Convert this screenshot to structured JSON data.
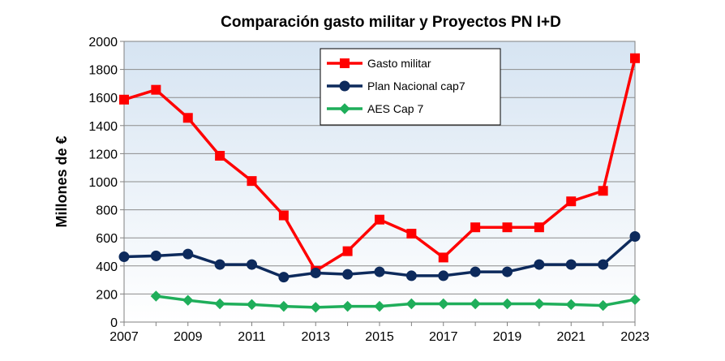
{
  "chart_data": {
    "type": "line",
    "title": "Comparación  gasto militar y Proyectos PN I+D",
    "xlabel": "",
    "ylabel": "Millones de €",
    "x": [
      2007,
      2008,
      2009,
      2010,
      2011,
      2012,
      2013,
      2014,
      2015,
      2016,
      2017,
      2018,
      2019,
      2020,
      2021,
      2022,
      2023
    ],
    "xlim": [
      2007,
      2023
    ],
    "xticks": [
      "2007",
      "2009",
      "2011",
      "2013",
      "2015",
      "2017",
      "2019",
      "2021",
      "2023"
    ],
    "ylim": [
      0,
      2000
    ],
    "yticks": [
      "0",
      "200",
      "400",
      "600",
      "800",
      "1000",
      "1200",
      "1400",
      "1600",
      "1800",
      "2000"
    ],
    "grid": "horizontal",
    "legend_position": "top-center",
    "series": [
      {
        "name": "Gasto militar",
        "color": "#ff0000",
        "marker": "square",
        "values": [
          1585,
          1655,
          1455,
          1185,
          1005,
          760,
          365,
          505,
          730,
          630,
          460,
          675,
          675,
          675,
          860,
          935,
          1880
        ]
      },
      {
        "name": "Plan Nacional cap7",
        "color": "#0d2a5c",
        "marker": "circle",
        "values": [
          465,
          472,
          485,
          410,
          410,
          320,
          350,
          340,
          358,
          330,
          330,
          358,
          358,
          410,
          410,
          410,
          610
        ]
      },
      {
        "name": "AES Cap 7",
        "color": "#1fae5a",
        "marker": "diamond",
        "values": [
          null,
          185,
          155,
          130,
          125,
          112,
          105,
          112,
          112,
          130,
          130,
          130,
          130,
          130,
          125,
          118,
          160
        ]
      }
    ]
  }
}
